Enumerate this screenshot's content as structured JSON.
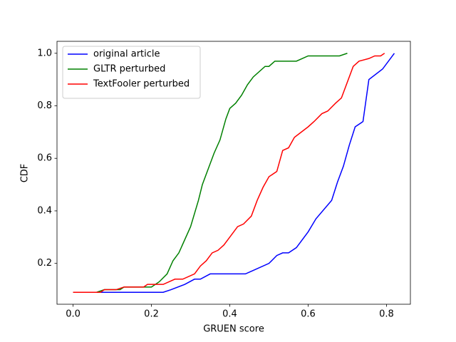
{
  "chart_data": {
    "type": "line",
    "xlabel": "GRUEN score",
    "ylabel": "CDF",
    "xlim": [
      -0.041,
      0.861
    ],
    "ylim": [
      0.0445,
      1.0455
    ],
    "xticks": [
      {
        "value": 0,
        "label": "0.0"
      },
      0.2,
      0.4,
      0.6,
      0.8
    ],
    "yticks": [
      0.2,
      0.4,
      0.6,
      0.8,
      {
        "value": 1,
        "label": "1.0"
      }
    ],
    "legend": "upper left",
    "grid": false,
    "series": [
      {
        "name": "original article",
        "color": "#0000ff",
        "x": [
          0,
          0.08,
          0.1,
          0.23,
          0.25,
          0.285,
          0.31,
          0.325,
          0.35,
          0.44,
          0.5,
          0.52,
          0.535,
          0.55,
          0.57,
          0.6,
          0.62,
          0.66,
          0.675,
          0.69,
          0.705,
          0.72,
          0.74,
          0.755,
          0.79,
          0.82
        ],
        "values": [
          0.09,
          0.09,
          0.09,
          0.09,
          0.1,
          0.12,
          0.14,
          0.14,
          0.16,
          0.16,
          0.2,
          0.23,
          0.24,
          0.24,
          0.26,
          0.32,
          0.37,
          0.44,
          0.51,
          0.57,
          0.65,
          0.72,
          0.74,
          0.9,
          0.94,
          1.0
        ]
      },
      {
        "name": "GLTR perturbed",
        "color": "#008000",
        "x": [
          0,
          0.06,
          0.08,
          0.12,
          0.13,
          0.16,
          0.2,
          0.22,
          0.24,
          0.255,
          0.27,
          0.3,
          0.32,
          0.33,
          0.35,
          0.36,
          0.375,
          0.39,
          0.4,
          0.415,
          0.43,
          0.445,
          0.46,
          0.49,
          0.5,
          0.515,
          0.57,
          0.6,
          0.68,
          0.7
        ],
        "values": [
          0.09,
          0.09,
          0.1,
          0.1,
          0.11,
          0.11,
          0.11,
          0.13,
          0.16,
          0.21,
          0.24,
          0.34,
          0.44,
          0.5,
          0.58,
          0.62,
          0.67,
          0.75,
          0.79,
          0.81,
          0.84,
          0.88,
          0.91,
          0.95,
          0.95,
          0.97,
          0.97,
          0.99,
          0.99,
          1.0
        ]
      },
      {
        "name": "TextFooler perturbed",
        "color": "#ff0000",
        "x": [
          0,
          0.07,
          0.08,
          0.11,
          0.13,
          0.18,
          0.19,
          0.23,
          0.26,
          0.28,
          0.31,
          0.325,
          0.34,
          0.355,
          0.37,
          0.385,
          0.4,
          0.42,
          0.435,
          0.455,
          0.47,
          0.485,
          0.5,
          0.52,
          0.535,
          0.55,
          0.565,
          0.6,
          0.615,
          0.635,
          0.65,
          0.67,
          0.685,
          0.715,
          0.73,
          0.755,
          0.77,
          0.785,
          0.795
        ],
        "values": [
          0.09,
          0.09,
          0.1,
          0.1,
          0.11,
          0.11,
          0.12,
          0.12,
          0.14,
          0.14,
          0.16,
          0.19,
          0.21,
          0.24,
          0.25,
          0.27,
          0.3,
          0.34,
          0.35,
          0.38,
          0.44,
          0.49,
          0.53,
          0.55,
          0.63,
          0.64,
          0.68,
          0.72,
          0.74,
          0.77,
          0.78,
          0.81,
          0.83,
          0.95,
          0.97,
          0.98,
          0.99,
          0.99,
          1.0
        ]
      }
    ]
  }
}
